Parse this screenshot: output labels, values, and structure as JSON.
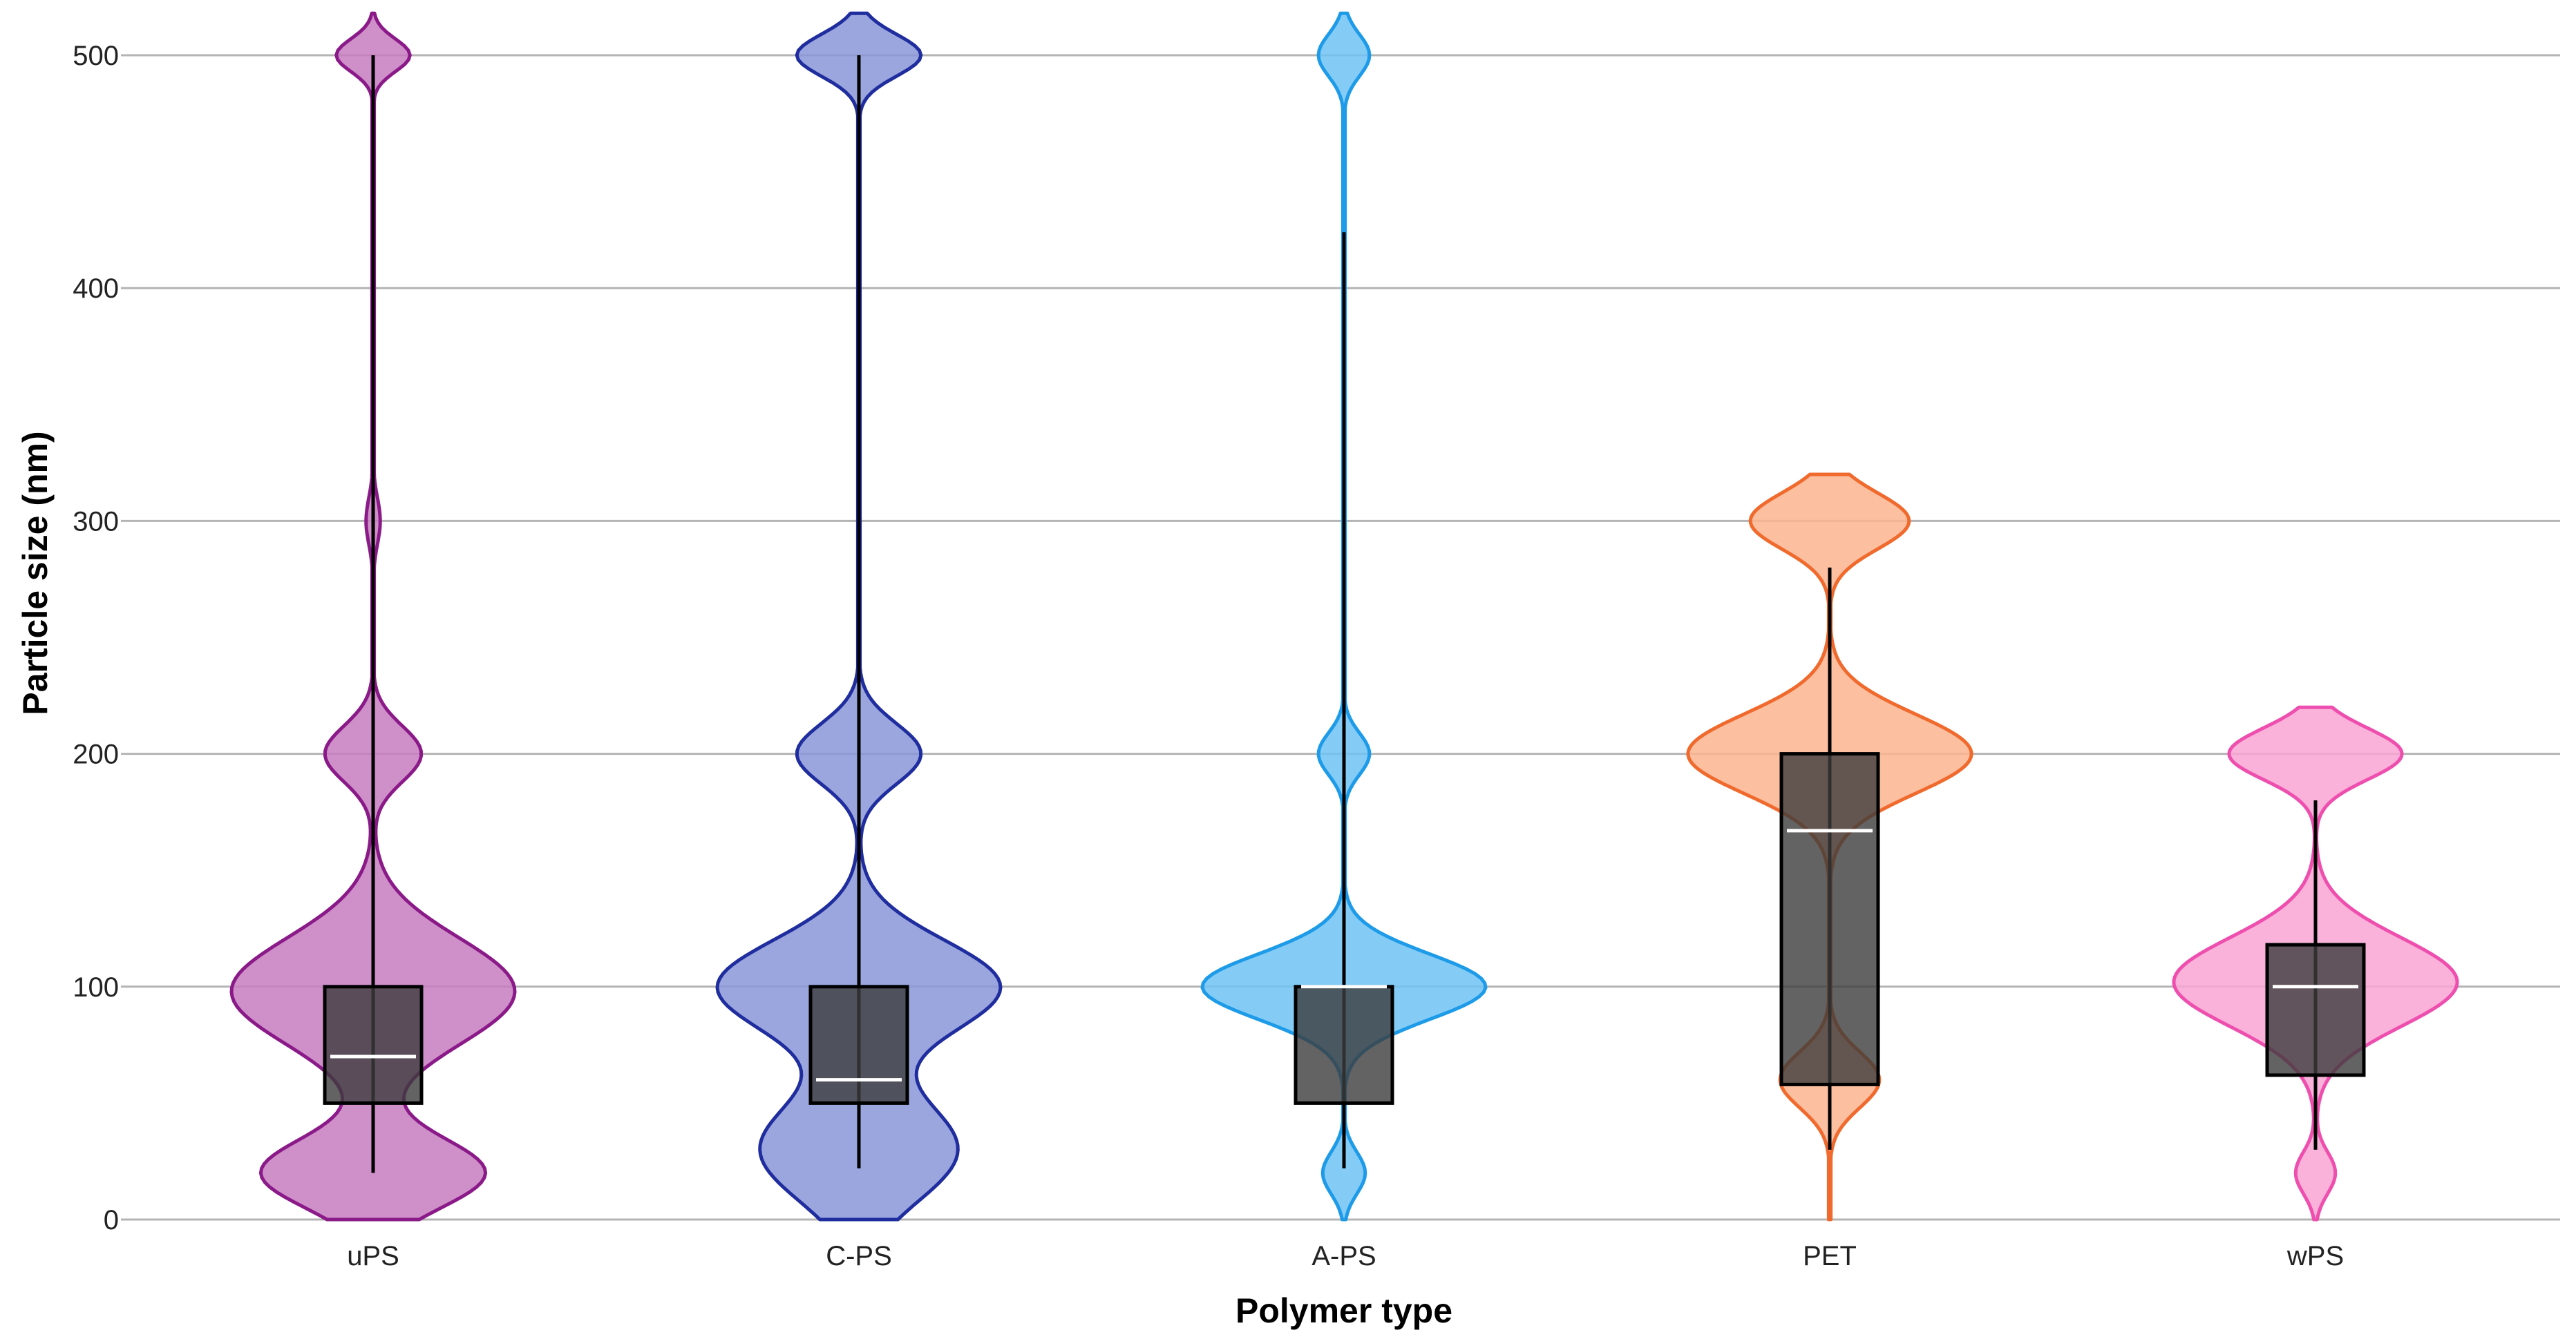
{
  "chart_data": {
    "type": "violin",
    "title": "",
    "xlabel": "Polymer type",
    "ylabel": "Particle size (nm)",
    "ylim": [
      0,
      500
    ],
    "yticks": [
      0,
      100,
      200,
      300,
      400,
      500
    ],
    "grid": true,
    "categories": [
      "uPS",
      "C-PS",
      "A-PS",
      "PET",
      "wPS"
    ],
    "box_fill": "#3c3c3c",
    "median_color": "#ffffff",
    "series": [
      {
        "name": "uPS",
        "fill": "#c77dc1",
        "stroke": "#8b1a89",
        "range": [
          0,
          518
        ],
        "modes": [
          {
            "center": 20,
            "sigma": 15,
            "height": 0.79
          },
          {
            "center": 98,
            "sigma": 23,
            "height": 1.0
          },
          {
            "center": 200,
            "sigma": 12,
            "height": 0.34
          },
          {
            "center": 300,
            "sigma": 10,
            "height": 0.05
          },
          {
            "center": 500,
            "sigma": 7,
            "height": 0.26
          }
        ],
        "box": {
          "q1": 50,
          "median": 70,
          "q3": 100,
          "whisker_low": 20,
          "whisker_high": 500
        }
      },
      {
        "name": "C-PS",
        "fill": "#8a97d8",
        "stroke": "#1f2d9e",
        "range": [
          0,
          518
        ],
        "modes": [
          {
            "center": 30,
            "sigma": 22,
            "height": 0.7
          },
          {
            "center": 100,
            "sigma": 20,
            "height": 1.0
          },
          {
            "center": 200,
            "sigma": 13,
            "height": 0.44
          },
          {
            "center": 500,
            "sigma": 9,
            "height": 0.44
          }
        ],
        "box": {
          "q1": 50,
          "median": 60,
          "q3": 100,
          "whisker_low": 22,
          "whisker_high": 500
        }
      },
      {
        "name": "A-PS",
        "fill": "#6ec3f5",
        "stroke": "#1e9be8",
        "range": [
          0,
          518
        ],
        "modes": [
          {
            "center": 20,
            "sigma": 9,
            "height": 0.15
          },
          {
            "center": 100,
            "sigma": 14,
            "height": 1.0
          },
          {
            "center": 200,
            "sigma": 9,
            "height": 0.18
          },
          {
            "center": 500,
            "sigma": 9,
            "height": 0.18
          }
        ],
        "box": {
          "q1": 50,
          "median": 100,
          "q3": 100,
          "whisker_low": 22,
          "whisker_high": 424
        }
      },
      {
        "name": "PET",
        "fill": "#fcb48f",
        "stroke": "#f06a2d",
        "range": [
          0,
          320
        ],
        "modes": [
          {
            "center": 60,
            "sigma": 12,
            "height": 0.35
          },
          {
            "center": 200,
            "sigma": 17,
            "height": 1.0
          },
          {
            "center": 300,
            "sigma": 12,
            "height": 0.56
          }
        ],
        "box": {
          "q1": 58,
          "median": 167,
          "q3": 200,
          "whisker_low": 30,
          "whisker_high": 280
        }
      },
      {
        "name": "wPS",
        "fill": "#f9a5d3",
        "stroke": "#ee4fae",
        "range": [
          0,
          220
        ],
        "modes": [
          {
            "center": 20,
            "sigma": 9,
            "height": 0.14
          },
          {
            "center": 102,
            "sigma": 19,
            "height": 1.0
          },
          {
            "center": 200,
            "sigma": 11,
            "height": 0.61
          }
        ],
        "box": {
          "q1": 62,
          "median": 100,
          "q3": 118,
          "whisker_low": 30,
          "whisker_high": 180
        }
      }
    ]
  }
}
